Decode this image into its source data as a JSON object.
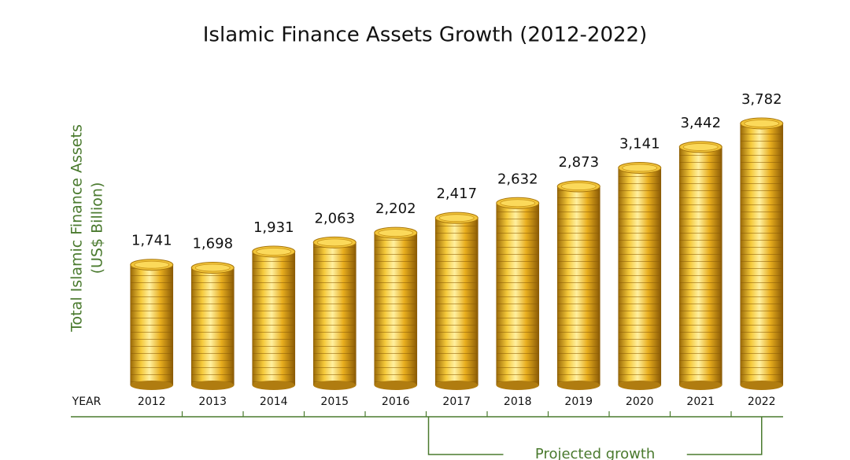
{
  "chart_data": {
    "type": "bar",
    "title": "Islamic Finance Assets Growth (2012-2022)",
    "y_label": [
      "Total Islamic Finance Assets",
      "(US$ Billion)"
    ],
    "x_label": "YEAR",
    "categories": [
      "2012",
      "2013",
      "2014",
      "2015",
      "2016",
      "2017",
      "2018",
      "2019",
      "2020",
      "2021",
      "2022"
    ],
    "values": [
      1741,
      1698,
      1931,
      2063,
      2202,
      2417,
      2632,
      2873,
      3141,
      3442,
      3782
    ],
    "value_labels": [
      "1,741",
      "1,698",
      "1,931",
      "2,063",
      "2,202",
      "2,417",
      "2,632",
      "2,873",
      "3,141",
      "3,442",
      "3,782"
    ],
    "color": "#e0a81c",
    "annotation": "Projected growth"
  }
}
